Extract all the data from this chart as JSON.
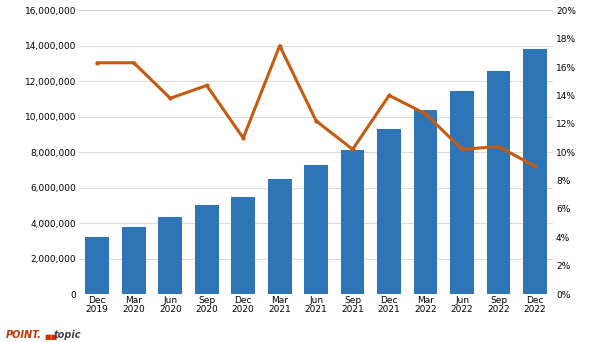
{
  "categories": [
    "Dec\n2019",
    "Mar\n2020",
    "Jun\n2020",
    "Sep\n2020",
    "Dec\n2020",
    "Mar\n2021",
    "Jun\n2021",
    "Sep\n2021",
    "Dec\n2021",
    "Mar\n2022",
    "Jun\n2022",
    "Sep\n2022",
    "Dec\n2022"
  ],
  "bar_values": [
    3200000,
    3800000,
    4350000,
    5000000,
    5500000,
    6500000,
    7300000,
    8100000,
    9300000,
    10400000,
    11450000,
    12600000,
    13800000
  ],
  "line_values": [
    0.163,
    0.163,
    0.138,
    0.147,
    0.11,
    0.175,
    0.122,
    0.102,
    0.14,
    0.127,
    0.102,
    0.104,
    0.09
  ],
  "bar_color": "#2E75B6",
  "line_color": "#C55A11",
  "bar_ylim": [
    0,
    16000000
  ],
  "line_ylim": [
    0,
    0.2
  ],
  "bar_yticks": [
    0,
    2000000,
    4000000,
    6000000,
    8000000,
    10000000,
    12000000,
    14000000,
    16000000
  ],
  "line_yticks": [
    0.0,
    0.02,
    0.04,
    0.06,
    0.08,
    0.1,
    0.12,
    0.14,
    0.16,
    0.18,
    0.2
  ],
  "background_color": "#FFFFFF",
  "grid_color": "#CCCCCC",
  "logo_color_point": "#CC3300",
  "logo_color_topic": "#444444",
  "logo_color_squares": "#CC3300"
}
